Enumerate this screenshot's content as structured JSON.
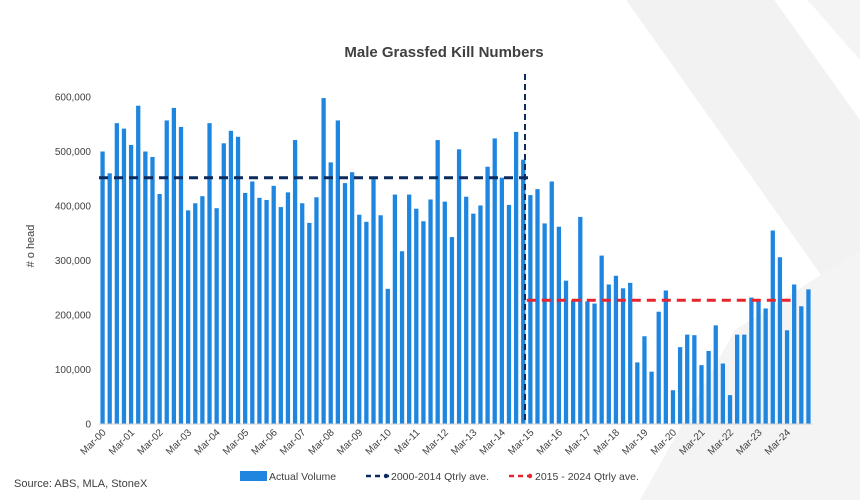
{
  "chart_data": {
    "type": "bar",
    "title": "Male Grassfed Kill Numbers",
    "ylabel": "# o head",
    "xlabel": "",
    "ylim": [
      0,
      600000
    ],
    "yticks": [
      0,
      100000,
      200000,
      300000,
      400000,
      500000,
      600000
    ],
    "ytick_labels": [
      "0",
      "100,000",
      "200,000",
      "300,000",
      "400,000",
      "500,000",
      "600,000"
    ],
    "grid": false,
    "legend_position": "bottom",
    "x_tick_labels": [
      "Mar-00",
      "Mar-01",
      "Mar-02",
      "Mar-03",
      "Mar-04",
      "Mar-05",
      "Mar-06",
      "Mar-07",
      "Mar-08",
      "Mar-09",
      "Mar-10",
      "Mar-11",
      "Mar-12",
      "Mar-13",
      "Mar-14",
      "Mar-15",
      "Mar-16",
      "Mar-17",
      "Mar-18",
      "Mar-19",
      "Mar-20",
      "Mar-21",
      "Mar-22",
      "Mar-23",
      "Mar-24"
    ],
    "series": [
      {
        "name": "Actual Volume",
        "color": "#1f86e0",
        "values": [
          500000,
          460000,
          552000,
          542000,
          512000,
          584000,
          500000,
          490000,
          422000,
          557000,
          580000,
          545000,
          392000,
          405000,
          418000,
          552000,
          396000,
          515000,
          538000,
          527000,
          424000,
          445000,
          415000,
          411000,
          437000,
          398000,
          425000,
          521000,
          405000,
          369000,
          416000,
          598000,
          480000,
          557000,
          442000,
          462000,
          384000,
          371000,
          452000,
          383000,
          248000,
          421000,
          317000,
          421000,
          395000,
          372000,
          412000,
          521000,
          408000,
          343000,
          504000,
          417000,
          386000,
          401000,
          472000,
          524000,
          452000,
          402000,
          536000,
          485000,
          420000,
          431000,
          368000,
          445000,
          362000,
          263000,
          227000,
          380000,
          225000,
          221000,
          309000,
          256000,
          272000,
          249000,
          259000,
          113000,
          161000,
          96000,
          206000,
          245000,
          62000,
          141000,
          164000,
          163000,
          108000,
          134000,
          181000,
          111000,
          53000,
          164000,
          164000,
          232000,
          226000,
          212000,
          355000,
          306000,
          172000,
          256000,
          216000,
          247000
        ]
      },
      {
        "name": "2000-2014 Qtrly ave.",
        "color": "#0d2a5c",
        "style": "dashed",
        "value": 452000,
        "x_from": "Mar-00",
        "x_to": "Mar-15"
      },
      {
        "name": "2015 - 2024 Qtrly ave.",
        "color": "#e8242c",
        "style": "dashed",
        "value": 227000,
        "x_from": "Mar-15",
        "x_to": "Mar-24"
      }
    ],
    "annotations": [
      {
        "type": "vertical-dashed-line",
        "at": "Mar-15",
        "color": "#0d2a5c"
      }
    ]
  },
  "source_note": "Source: ABS, MLA, StoneX"
}
